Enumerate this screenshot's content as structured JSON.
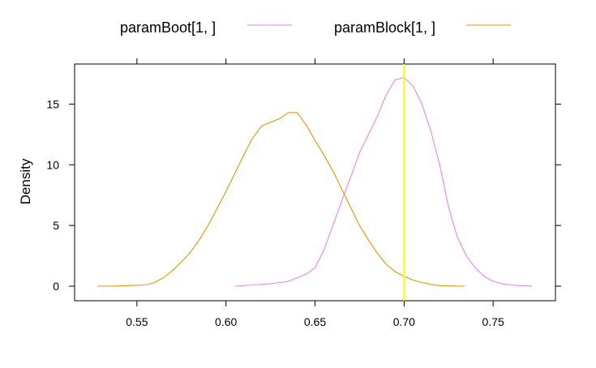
{
  "chart_data": {
    "type": "line",
    "title": "",
    "xlabel": "",
    "ylabel": "Density",
    "xlim": [
      0.515,
      0.785
    ],
    "ylim": [
      -1.2,
      18.3
    ],
    "x_ticks": [
      0.55,
      0.6,
      0.65,
      0.7,
      0.75
    ],
    "x_tick_labels": [
      "0.55",
      "0.60",
      "0.65",
      "0.70",
      "0.75"
    ],
    "y_ticks": [
      0,
      5,
      10,
      15
    ],
    "y_tick_labels": [
      "0",
      "5",
      "10",
      "15"
    ],
    "grid": false,
    "legend_position": "top",
    "reference_line": {
      "x": 0.7,
      "color": "#ffff00"
    },
    "series": [
      {
        "name": "paramBoot[1, ]",
        "color": "#ee82ee",
        "x": [
          0.605,
          0.615,
          0.625,
          0.635,
          0.645,
          0.65,
          0.655,
          0.66,
          0.665,
          0.67,
          0.675,
          0.68,
          0.685,
          0.69,
          0.695,
          0.7,
          0.705,
          0.71,
          0.715,
          0.72,
          0.725,
          0.73,
          0.735,
          0.74,
          0.745,
          0.75,
          0.755,
          0.76,
          0.765,
          0.772
        ],
        "y": [
          0.0,
          0.1,
          0.2,
          0.4,
          1.0,
          1.5,
          3.0,
          5.0,
          7.0,
          9.0,
          11.0,
          12.5,
          14.0,
          15.8,
          17.0,
          17.2,
          16.5,
          15.0,
          12.8,
          10.0,
          6.5,
          4.0,
          2.5,
          1.5,
          0.8,
          0.4,
          0.2,
          0.1,
          0.05,
          0.0
        ]
      },
      {
        "name": "paramBlock[1, ]",
        "color": "#e69500",
        "x": [
          0.528,
          0.535,
          0.545,
          0.555,
          0.56,
          0.565,
          0.57,
          0.575,
          0.58,
          0.585,
          0.59,
          0.595,
          0.6,
          0.605,
          0.61,
          0.615,
          0.62,
          0.625,
          0.63,
          0.635,
          0.64,
          0.645,
          0.65,
          0.655,
          0.66,
          0.665,
          0.67,
          0.675,
          0.68,
          0.685,
          0.69,
          0.695,
          0.7,
          0.705,
          0.71,
          0.715,
          0.72,
          0.725,
          0.734
        ],
        "y": [
          0.0,
          0.0,
          0.05,
          0.1,
          0.3,
          0.7,
          1.3,
          2.0,
          2.8,
          3.8,
          5.0,
          6.4,
          7.8,
          9.3,
          10.8,
          12.2,
          13.2,
          13.5,
          13.8,
          14.3,
          14.3,
          13.3,
          12.0,
          10.8,
          9.5,
          8.0,
          6.5,
          5.0,
          3.8,
          2.7,
          1.8,
          1.2,
          0.8,
          0.5,
          0.3,
          0.15,
          0.05,
          0.02,
          0.0
        ]
      }
    ]
  }
}
